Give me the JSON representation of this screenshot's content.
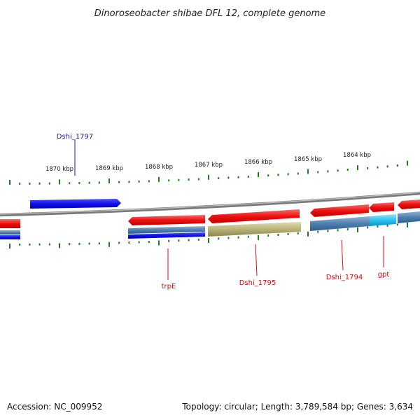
{
  "title": "Dinoroseobacter shibae DFL 12, complete genome",
  "scale_labels": [
    "1870 kbp",
    "1869 kbp",
    "1868 kbp",
    "1867 kbp",
    "1866 kbp",
    "1865 kbp",
    "1864 kbp"
  ],
  "gene_labels": {
    "dshi_1797": "Dshi_1797",
    "trpE": "trpE",
    "dshi_1795": "Dshi_1795",
    "dshi_1794": "Dshi_1794",
    "gpt": "gpt"
  },
  "footer": {
    "accession": "Accession: NC_009952",
    "topology": "Topology: circular; Length: 3,789,584 bp; Genes: 3,634"
  },
  "colors": {
    "gene_red": "#ff1a1a",
    "gene_blue": "#1010ee",
    "cds_steelblue": "#4f7fb0",
    "cds_olive": "#b8b37a",
    "cds_cyan": "#29c4f0",
    "tick_green": "#1e7d1e",
    "backbone_gray": "#808080",
    "label_blue": "#1a1aaa",
    "label_red": "#cc1111"
  }
}
